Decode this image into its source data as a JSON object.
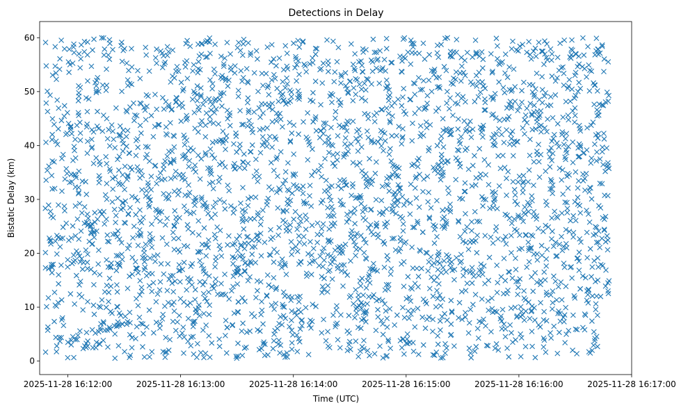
{
  "chart_data": {
    "type": "scatter",
    "title": "Detections in Delay",
    "xlabel": "Time (UTC)",
    "ylabel": "Bistatic Delay (km)",
    "marker": "x",
    "marker_color": "#1f77b4",
    "x_type": "time",
    "xlim": [
      "2025-11-28 16:11:45",
      "2025-11-28 16:17:00"
    ],
    "ylim": [
      -2.5,
      63
    ],
    "x_ticks": [
      "2025-11-28 16:12:00",
      "2025-11-28 16:13:00",
      "2025-11-28 16:14:00",
      "2025-11-28 16:15:00",
      "2025-11-28 16:16:00",
      "2025-11-28 16:17:00"
    ],
    "y_ticks": [
      0,
      10,
      20,
      30,
      40,
      50,
      60
    ],
    "x_range": [
      "2025-11-28 16:11:48",
      "2025-11-28 16:16:48"
    ],
    "y_range": [
      0.5,
      60
    ],
    "approx_point_count": 3000,
    "grid": false,
    "legend": "none"
  }
}
